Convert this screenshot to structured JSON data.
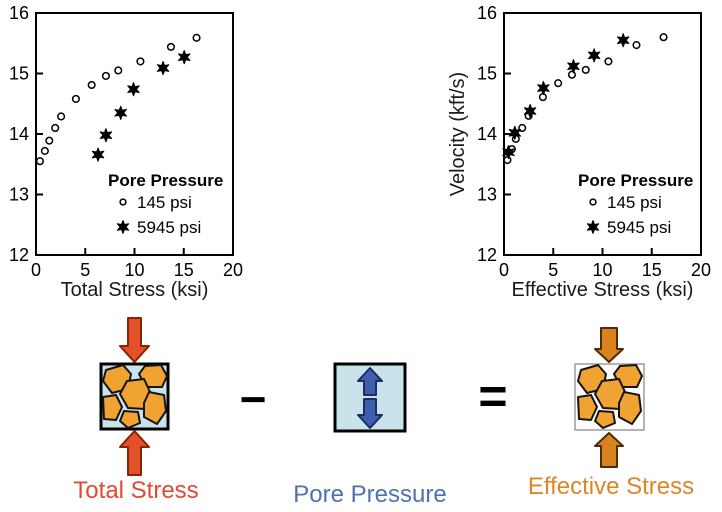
{
  "chart_data": [
    {
      "type": "scatter",
      "xlabel": "Total Stress (ksi)",
      "ylabel": "",
      "xlim": [
        0,
        20
      ],
      "ylim": [
        12,
        16
      ],
      "xticks": [
        0,
        5,
        10,
        15,
        20
      ],
      "yticks": [
        12,
        13,
        14,
        15,
        16
      ],
      "grid": false,
      "legend": {
        "title": "Pore Pressure",
        "position": "inside-bottom-right"
      },
      "series": [
        {
          "name": "145 psi",
          "marker": "open-circle",
          "color": "#000000",
          "points": [
            [
              0.4,
              13.55
            ],
            [
              0.9,
              13.72
            ],
            [
              1.35,
              13.89
            ],
            [
              1.95,
              14.1
            ],
            [
              2.55,
              14.29
            ],
            [
              4.05,
              14.58
            ],
            [
              5.65,
              14.81
            ],
            [
              7.1,
              14.96
            ],
            [
              8.35,
              15.05
            ],
            [
              10.6,
              15.2
            ],
            [
              13.7,
              15.44
            ],
            [
              16.3,
              15.59
            ]
          ]
        },
        {
          "name": "5945 psi",
          "marker": "filled-star",
          "color": "#000000",
          "points": [
            [
              6.3,
              13.66
            ],
            [
              7.1,
              13.98
            ],
            [
              8.6,
              14.35
            ],
            [
              9.9,
              14.74
            ],
            [
              12.9,
              15.09
            ],
            [
              15.05,
              15.27
            ]
          ]
        }
      ]
    },
    {
      "type": "scatter",
      "xlabel": "Effective Stress (ksi)",
      "ylabel": "Velocity (kft/s)",
      "xlim": [
        0,
        20
      ],
      "ylim": [
        12,
        16
      ],
      "xticks": [
        0,
        5,
        10,
        15,
        20
      ],
      "yticks": [
        12,
        13,
        14,
        15,
        16
      ],
      "grid": false,
      "legend": {
        "title": "Pore Pressure",
        "position": "inside-bottom-right"
      },
      "series": [
        {
          "name": "145 psi",
          "marker": "open-circle",
          "color": "#000000",
          "points": [
            [
              0.35,
              13.57
            ],
            [
              0.8,
              13.75
            ],
            [
              1.2,
              13.92
            ],
            [
              1.85,
              14.1
            ],
            [
              2.5,
              14.3
            ],
            [
              3.95,
              14.61
            ],
            [
              5.5,
              14.84
            ],
            [
              6.9,
              14.98
            ],
            [
              8.3,
              15.06
            ],
            [
              10.6,
              15.2
            ],
            [
              13.45,
              15.47
            ],
            [
              16.2,
              15.6
            ]
          ]
        },
        {
          "name": "5945 psi",
          "marker": "filled-star",
          "color": "#000000",
          "points": [
            [
              0.45,
              13.7
            ],
            [
              1.1,
              14.02
            ],
            [
              2.65,
              14.38
            ],
            [
              4.0,
              14.76
            ],
            [
              7.05,
              15.12
            ],
            [
              9.15,
              15.3
            ],
            [
              12.1,
              15.55
            ]
          ]
        }
      ]
    }
  ],
  "diagram": {
    "total_stress_label": "Total Stress",
    "pore_pressure_label": "Pore Pressure",
    "effective_stress_label": "Effective Stress",
    "minus_sign": "−",
    "equals_sign": "=",
    "colors": {
      "total_stress_text": "#e04a30",
      "pore_pressure_text": "#4c72b4",
      "effective_stress_text": "#dc8627",
      "red_arrow": "#e2512a",
      "blue_arrow": "#3d5fae",
      "orange_arrow": "#d9821e",
      "grain": "#f0a232",
      "water_fill": "#c9e3ea"
    }
  }
}
